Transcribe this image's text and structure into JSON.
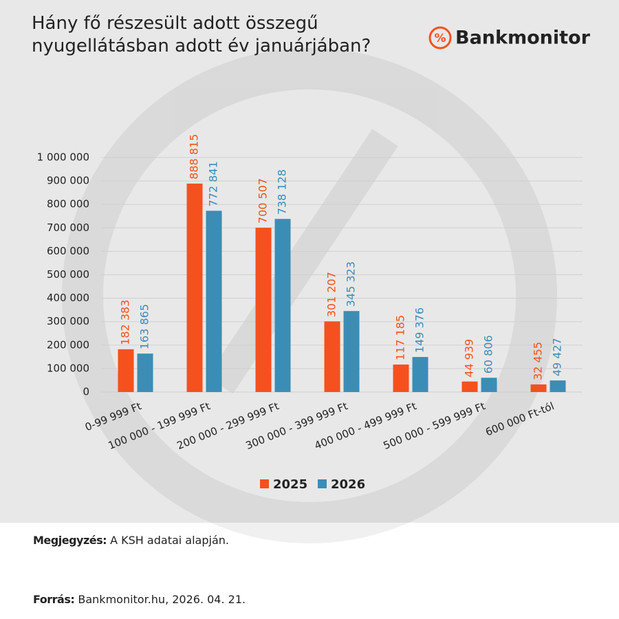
{
  "chart_data": {
    "type": "bar",
    "title": "Hány fő részesült adott összegű nyugellátásban adott év januárjában?",
    "categories": [
      "0-99 999 Ft",
      "100 000 - 199 999 Ft",
      "200 000 - 299 999 Ft",
      "300 000 - 399 999  Ft",
      "400 000 - 499 999 Ft",
      "500 000 - 599 999 Ft",
      "600 000 Ft-tól"
    ],
    "series": [
      {
        "name": "2025",
        "color": "#f4511e",
        "values": [
          182383,
          888815,
          700507,
          301207,
          117185,
          44939,
          32455
        ],
        "value_labels": [
          "182 383",
          "888 815",
          "700 507",
          "301 207",
          "117 185",
          "44 939",
          "32 455"
        ]
      },
      {
        "name": "2026",
        "color": "#3b8db5",
        "values": [
          163865,
          772841,
          738128,
          345323,
          149376,
          60806,
          49427
        ],
        "value_labels": [
          "163 865",
          "772 841",
          "738 128",
          "345 323",
          "149 376",
          "60 806",
          "49 427"
        ]
      }
    ],
    "ylim": [
      0,
      1000000
    ],
    "yticks": [
      0,
      {
        "value": 100000,
        "label": "100 000"
      },
      {
        "value": 200000,
        "label": "200 000"
      },
      {
        "value": 300000,
        "label": "300 000"
      },
      {
        "value": 400000,
        "label": "400 000"
      },
      {
        "value": 500000,
        "label": "500 000"
      },
      {
        "value": 600000,
        "label": "600 000"
      },
      {
        "value": 700000,
        "label": "700 000"
      },
      {
        "value": 800000,
        "label": "800 000"
      },
      {
        "value": 900000,
        "label": "900 000"
      },
      {
        "value": 1000000,
        "label": "1 000 000"
      }
    ],
    "grid": true,
    "legend": "bottom"
  },
  "brand": "Bankmonitor",
  "note": {
    "label": "Megjegyzés:",
    "text": "A KSH adatai alapján."
  },
  "source": {
    "label": "Forrás:",
    "text": "Bankmonitor.hu, 2026. 04. 21."
  }
}
